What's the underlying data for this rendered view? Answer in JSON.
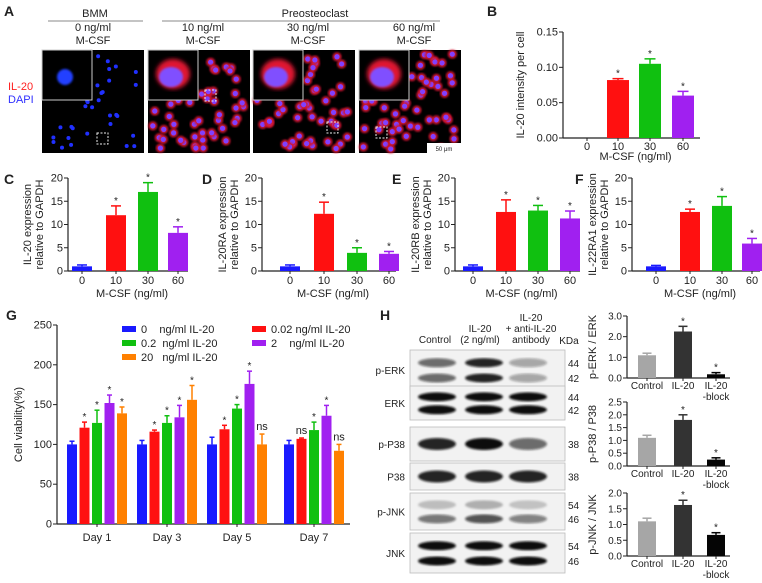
{
  "panel_labels": [
    "A",
    "B",
    "C",
    "D",
    "E",
    "F",
    "G",
    "H"
  ],
  "panel_a": {
    "groups": [
      {
        "label": "BMM"
      },
      {
        "label": "Preosteoclast"
      }
    ],
    "images": [
      {
        "conc": "0 ng/ml",
        "unit": "M-CSF",
        "red": false
      },
      {
        "conc": "10 ng/ml",
        "unit": "M-CSF",
        "red": true
      },
      {
        "conc": "30 ng/ml",
        "unit": "M-CSF",
        "red": true
      },
      {
        "conc": "60 ng/ml",
        "unit": "M-CSF",
        "red": true
      }
    ],
    "stain_il20": "IL-20",
    "stain_dapi": "DAPI",
    "scale_bar": "50 μm",
    "colors": {
      "il20": "#ff2020",
      "dapi": "#3030ff"
    }
  },
  "panel_h_blot": {
    "lanes": [
      "Control",
      "IL-20\n(2 ng/ml)",
      "IL-20\n+ anti-IL-20\nantibody"
    ],
    "kda_label": "KDa",
    "rows": [
      {
        "name": "p-ERK",
        "kda": [
          "44",
          "42"
        ]
      },
      {
        "name": "ERK",
        "kda": [
          "44",
          "42"
        ]
      },
      {
        "name": "p-P38",
        "kda": [
          "38"
        ]
      },
      {
        "name": "P38",
        "kda": [
          "38"
        ]
      },
      {
        "name": "p-JNK",
        "kda": [
          "54",
          "46"
        ]
      },
      {
        "name": "JNK",
        "kda": [
          "54",
          "46"
        ]
      }
    ]
  },
  "chart_data": [
    {
      "id": "B",
      "type": "bar",
      "categories": [
        "0",
        "10",
        "30",
        "60"
      ],
      "values": [
        0,
        0.082,
        0.105,
        0.06
      ],
      "errors": [
        0,
        0.002,
        0.007,
        0.006
      ],
      "sig": [
        "",
        "*",
        "*",
        "*"
      ],
      "xlabel": "M-CSF (ng/ml)",
      "ylabel": "IL-20 intensity per cell",
      "ylim": [
        0,
        0.15
      ],
      "yticks": [
        "0.00",
        "0.05",
        "0.10",
        "0.15"
      ],
      "colors": [
        "#1a1aff",
        "#ff1010",
        "#10c010",
        "#a020f0"
      ]
    },
    {
      "id": "C",
      "type": "bar",
      "categories": [
        "0",
        "10",
        "30",
        "60"
      ],
      "values": [
        1,
        12,
        17,
        8.2
      ],
      "errors": [
        0.3,
        2,
        2,
        1.3
      ],
      "sig": [
        "",
        "*",
        "*",
        "*"
      ],
      "xlabel": "M-CSF (ng/ml)",
      "ylabel": "IL-20 expression\nrelative to GAPDH",
      "ylim": [
        0,
        20
      ],
      "yticks": [
        "0",
        "5",
        "10",
        "15",
        "20"
      ],
      "colors": [
        "#1a1aff",
        "#ff1010",
        "#10c010",
        "#a020f0"
      ]
    },
    {
      "id": "D",
      "type": "bar",
      "categories": [
        "0",
        "10",
        "30",
        "60"
      ],
      "values": [
        1,
        12.3,
        3.9,
        3.7
      ],
      "errors": [
        0.3,
        2.5,
        1.1,
        0.5
      ],
      "sig": [
        "",
        "*",
        "*",
        "*"
      ],
      "xlabel": "M-CSF (ng/ml)",
      "ylabel": "IL-20RA expression\nrelative to GAPDH",
      "ylim": [
        0,
        20
      ],
      "yticks": [
        "0",
        "5",
        "10",
        "15",
        "20"
      ],
      "colors": [
        "#1a1aff",
        "#ff1010",
        "#10c010",
        "#a020f0"
      ]
    },
    {
      "id": "E",
      "type": "bar",
      "categories": [
        "0",
        "10",
        "30",
        "60"
      ],
      "values": [
        1,
        12.7,
        13,
        11.3
      ],
      "errors": [
        0.3,
        2.6,
        1.1,
        1.6
      ],
      "sig": [
        "",
        "*",
        "*",
        "*"
      ],
      "xlabel": "M-CSF (ng/ml)",
      "ylabel": "IL-20RB expression\nrelative to GAPDH",
      "ylim": [
        0,
        20
      ],
      "yticks": [
        "0",
        "5",
        "10",
        "15",
        "20"
      ],
      "colors": [
        "#1a1aff",
        "#ff1010",
        "#10c010",
        "#a020f0"
      ]
    },
    {
      "id": "F",
      "type": "bar",
      "categories": [
        "0",
        "10",
        "30",
        "60"
      ],
      "values": [
        1,
        12.7,
        14,
        5.9
      ],
      "errors": [
        0.2,
        0.6,
        2,
        1.1
      ],
      "sig": [
        "",
        "*",
        "*",
        "*"
      ],
      "xlabel": "M-CSF (ng/ml)",
      "ylabel": "IL-22RA1 expression\nrelative to GAPDH",
      "ylim": [
        0,
        20
      ],
      "yticks": [
        "0",
        "5",
        "10",
        "15",
        "20"
      ],
      "colors": [
        "#1a1aff",
        "#ff1010",
        "#10c010",
        "#a020f0"
      ]
    },
    {
      "id": "G",
      "type": "bar",
      "categories": [
        "Day 1",
        "Day 3",
        "Day 5",
        "Day 7"
      ],
      "ylabel": "Cell viability(%)",
      "xlabel": "",
      "ylim": [
        0,
        250
      ],
      "yticks": [
        "0",
        "50",
        "100",
        "150",
        "200",
        "250"
      ],
      "series": [
        {
          "name": "0    ng/ml IL-20",
          "values": [
            100,
            100,
            100,
            100
          ],
          "errors": [
            4,
            5,
            9,
            5
          ],
          "sig": [
            "",
            "",
            "",
            ""
          ],
          "color": "#1a1aff"
        },
        {
          "name": "0.02 ng/ml IL-20",
          "values": [
            121,
            116,
            119,
            107
          ],
          "errors": [
            7,
            2,
            5,
            1
          ],
          "sig": [
            "*",
            "*",
            "*",
            "ns"
          ],
          "color": "#ff1010"
        },
        {
          "name": "0.2  ng/ml IL-20",
          "values": [
            127,
            127,
            145,
            118
          ],
          "errors": [
            16,
            9,
            5,
            10
          ],
          "sig": [
            "*",
            "*",
            "*",
            "*"
          ],
          "color": "#10c010"
        },
        {
          "name": "2    ng/ml IL-20",
          "values": [
            152,
            134,
            176,
            136
          ],
          "errors": [
            10,
            15,
            16,
            13
          ],
          "sig": [
            "*",
            "*",
            "*",
            "*"
          ],
          "color": "#a020f0"
        },
        {
          "name": "20   ng/ml IL-20",
          "values": [
            139,
            156,
            100,
            92
          ],
          "errors": [
            8,
            18,
            13,
            8
          ],
          "sig": [
            "*",
            "*",
            "ns",
            "ns"
          ],
          "color": "#ff8000"
        }
      ]
    },
    {
      "id": "H1",
      "type": "bar",
      "categories": [
        "Control",
        "IL-20",
        "IL-20\n-block"
      ],
      "values": [
        1.1,
        2.25,
        0.18
      ],
      "errors": [
        0.1,
        0.25,
        0.08
      ],
      "sig": [
        "",
        "*",
        "*"
      ],
      "xlabel": "",
      "ylabel": "p-ERK / ERK",
      "ylim": [
        0,
        3
      ],
      "yticks": [
        "0.0",
        "1.0",
        "2.0",
        "3.0"
      ],
      "colors": [
        "#a6a6a6",
        "#333333",
        "#050505"
      ]
    },
    {
      "id": "H2",
      "type": "bar",
      "categories": [
        "Control",
        "IL-20",
        "IL-20\n-block"
      ],
      "values": [
        1.1,
        1.8,
        0.25
      ],
      "errors": [
        0.1,
        0.2,
        0.07
      ],
      "sig": [
        "",
        "*",
        "*"
      ],
      "xlabel": "",
      "ylabel": "p-P38 / P38",
      "ylim": [
        0,
        2.5
      ],
      "yticks": [
        "0.0",
        "0.5",
        "1.0",
        "1.5",
        "2.0",
        "2.5"
      ],
      "colors": [
        "#a6a6a6",
        "#333333",
        "#050505"
      ]
    },
    {
      "id": "H3",
      "type": "bar",
      "categories": [
        "Control",
        "IL-20",
        "IL-20\n-block"
      ],
      "values": [
        1.1,
        1.62,
        0.67
      ],
      "errors": [
        0.1,
        0.15,
        0.07
      ],
      "sig": [
        "",
        "*",
        "*"
      ],
      "xlabel": "",
      "ylabel": "p-JNK / JNK",
      "ylim": [
        0,
        2
      ],
      "yticks": [
        "0.0",
        "0.5",
        "1.0",
        "1.5",
        "2.0"
      ],
      "colors": [
        "#a6a6a6",
        "#333333",
        "#050505"
      ]
    }
  ]
}
